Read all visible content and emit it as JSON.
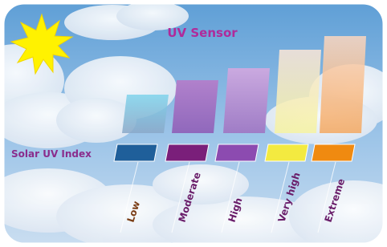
{
  "title": "UV Sensor",
  "scale_label": "Solar UV Index",
  "levels": [
    "Low",
    "Moderate",
    "High",
    "Very high",
    "Extreme"
  ]
}
